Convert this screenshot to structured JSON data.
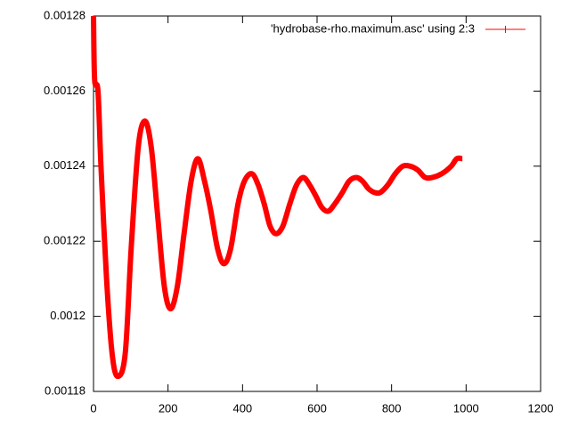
{
  "chart_data": {
    "type": "line",
    "x": [
      0,
      3,
      12,
      20,
      35,
      50,
      65,
      85,
      101,
      120,
      138,
      155,
      172,
      190,
      207,
      225,
      243,
      262,
      280,
      298,
      315,
      333,
      350,
      368,
      388,
      405,
      425,
      442,
      458,
      474,
      490,
      508,
      527,
      545,
      563,
      580,
      597,
      613,
      630,
      648,
      668,
      686,
      705,
      722,
      738,
      754,
      770,
      790,
      810,
      830,
      850,
      870,
      890,
      910,
      935,
      960,
      975,
      990
    ],
    "series": [
      {
        "name": "'hydrobase-rho.maximum.asc' using 2:3",
        "color": "#ff0000",
        "values": [
          0.00128,
          0.001263,
          0.00126,
          0.00124,
          0.00121,
          0.00119,
          0.001184,
          0.00119,
          0.001218,
          0.001245,
          0.001252,
          0.001245,
          0.001227,
          0.001208,
          0.001202,
          0.001208,
          0.001222,
          0.001236,
          0.001242,
          0.001236,
          0.001228,
          0.001218,
          0.001214,
          0.001218,
          0.00123,
          0.001236,
          0.001238,
          0.001235,
          0.00123,
          0.001224,
          0.001222,
          0.001224,
          0.00123,
          0.001235,
          0.001237,
          0.001235,
          0.001232,
          0.001229,
          0.001228,
          0.00123,
          0.001233,
          0.001236,
          0.001237,
          0.001236,
          0.001234,
          0.001233,
          0.001233,
          0.001235,
          0.001238,
          0.00124,
          0.00124,
          0.001239,
          0.001237,
          0.001237,
          0.001238,
          0.00124,
          0.001242,
          0.001242
        ]
      }
    ],
    "xlim": [
      0,
      1200
    ],
    "xticks": [
      0,
      200,
      400,
      600,
      800,
      1000,
      1200
    ],
    "ylim": [
      0.00118,
      0.00128
    ],
    "yticks": [
      0.00118,
      0.0012,
      0.00122,
      0.00124,
      0.00126,
      0.00128
    ],
    "legend": "top-right"
  }
}
